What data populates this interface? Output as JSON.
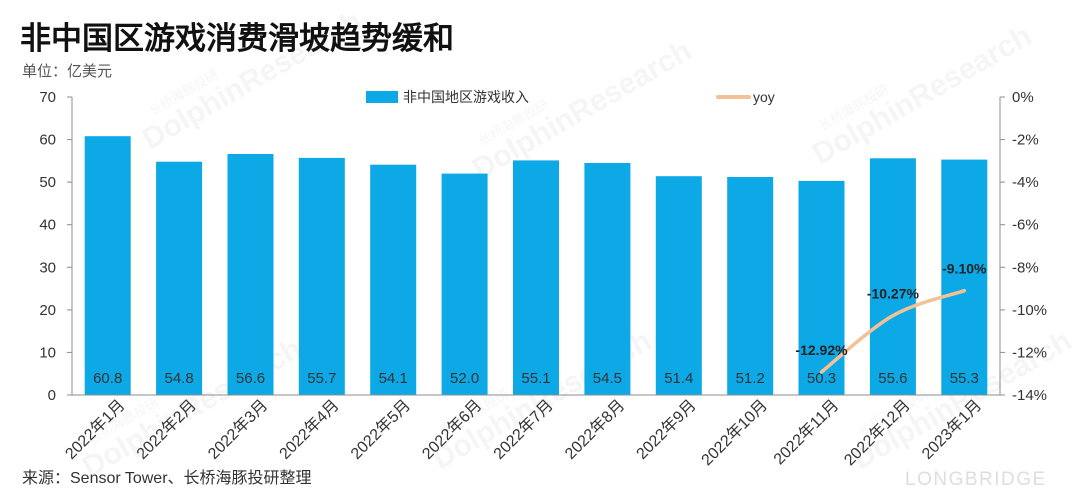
{
  "watermarks": {
    "brand_en": "DolphinResearch",
    "brand_cn": "长桥海豚投研",
    "logo": "LONGBRIDGE"
  },
  "colors": {
    "bar": "#0DA9E6",
    "line": "#F4C195",
    "axis": "#8C8C8C",
    "text": "#333333",
    "watermark": "#9AA0A6"
  },
  "chart_data": {
    "type": "bar",
    "title": "非中国区游戏消费滑坡趋势缓和",
    "unit_label": "单位：亿美元",
    "source": "来源：Sensor Tower、长桥海豚投研整理",
    "categories": [
      "2022年1月",
      "2022年2月",
      "2022年3月",
      "2022年4月",
      "2022年5月",
      "2022年6月",
      "2022年7月",
      "2022年8月",
      "2022年9月",
      "2022年10月",
      "2022年11月",
      "2022年12月",
      "2023年1月"
    ],
    "series": [
      {
        "name": "非中国地区游戏收入",
        "type": "bar",
        "axis": "left",
        "values": [
          60.8,
          54.8,
          56.6,
          55.7,
          54.1,
          52.0,
          55.1,
          54.5,
          51.4,
          51.2,
          50.3,
          55.6,
          55.3
        ],
        "data_labels": [
          "60.8",
          "54.8",
          "56.6",
          "55.7",
          "54.1",
          "52.0",
          "55.1",
          "54.5",
          "51.4",
          "51.2",
          "50.3",
          "55.6",
          "55.3"
        ]
      },
      {
        "name": "yoy",
        "type": "line",
        "axis": "right",
        "values": [
          null,
          null,
          null,
          null,
          null,
          null,
          null,
          null,
          null,
          null,
          -12.92,
          -10.27,
          -9.1
        ],
        "data_labels": [
          null,
          null,
          null,
          null,
          null,
          null,
          null,
          null,
          null,
          null,
          "-12.92%",
          "-10.27%",
          "-9.10%"
        ]
      }
    ],
    "y_left": {
      "range": [
        0,
        70
      ],
      "tick_labels": [
        "0",
        "10",
        "20",
        "30",
        "40",
        "50",
        "60",
        "70"
      ]
    },
    "y_right": {
      "range": [
        -14,
        0
      ],
      "tick_labels": [
        "-14%",
        "-12%",
        "-10%",
        "-8%",
        "-6%",
        "-4%",
        "-2%",
        "0%"
      ]
    },
    "legend": "top-center",
    "grid": false
  }
}
